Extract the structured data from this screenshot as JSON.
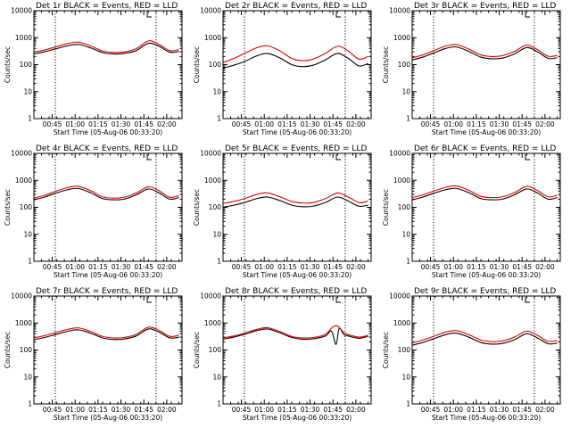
{
  "chart_data": [
    {
      "id": "p1",
      "type": "line",
      "title": "Det 1r BLACK = Events, RED = LLD",
      "xlabel": "Start Time (05-Aug-06 00:33:20)",
      "ylabel": "Counts/sec",
      "ylog": true,
      "ylim": [
        1,
        10000
      ],
      "yticks": [
        "1",
        "10",
        "100",
        "1000",
        "10000"
      ],
      "xticks": [
        "00:45",
        "01:00",
        "01:15",
        "01:30",
        "01:45",
        "02:00"
      ],
      "markers": [
        "00:47",
        "01:53"
      ],
      "xlim": [
        "00:33",
        "02:10"
      ],
      "series": [
        {
          "color": "#000000",
          "x": [
            "00:33",
            "00:40",
            "00:47",
            "00:55",
            "01:02",
            "01:10",
            "01:18",
            "01:25",
            "01:32",
            "01:40",
            "01:48",
            "01:55",
            "02:02",
            "02:08"
          ],
          "y": [
            250,
            300,
            380,
            500,
            560,
            420,
            280,
            250,
            260,
            330,
            620,
            480,
            290,
            310
          ]
        },
        {
          "color": "#e00000",
          "x": [
            "00:33",
            "00:40",
            "00:47",
            "00:55",
            "01:02",
            "01:10",
            "01:18",
            "01:25",
            "01:32",
            "01:40",
            "01:48",
            "01:55",
            "02:02",
            "02:08"
          ],
          "y": [
            290,
            350,
            450,
            600,
            680,
            500,
            320,
            285,
            295,
            390,
            760,
            560,
            330,
            360
          ]
        }
      ]
    },
    {
      "id": "p2",
      "type": "line",
      "title": "Det 2r BLACK = Events, RED = LLD",
      "xlabel": "Start Time (05-Aug-06 00:33:20)",
      "ylabel": "Counts/sec",
      "ylog": true,
      "ylim": [
        1,
        10000
      ],
      "yticks": [
        "1",
        "10",
        "100",
        "1000",
        "10000"
      ],
      "xticks": [
        "00:45",
        "01:00",
        "01:15",
        "01:30",
        "01:45",
        "02:00"
      ],
      "markers": [
        "00:47",
        "01:53"
      ],
      "xlim": [
        "00:33",
        "02:10"
      ],
      "series": [
        {
          "color": "#000000",
          "x": [
            "00:33",
            "00:40",
            "00:47",
            "00:55",
            "01:02",
            "01:10",
            "01:18",
            "01:25",
            "01:32",
            "01:40",
            "01:48",
            "01:55",
            "02:02",
            "02:08"
          ],
          "y": [
            75,
            95,
            130,
            210,
            260,
            180,
            100,
            85,
            95,
            150,
            260,
            170,
            90,
            110
          ]
        },
        {
          "color": "#e00000",
          "x": [
            "00:33",
            "00:40",
            "00:47",
            "00:55",
            "01:02",
            "01:10",
            "01:18",
            "01:25",
            "01:32",
            "01:40",
            "01:48",
            "01:55",
            "02:02",
            "02:08"
          ],
          "y": [
            120,
            170,
            260,
            420,
            500,
            330,
            170,
            140,
            160,
            260,
            480,
            320,
            160,
            200
          ]
        }
      ]
    },
    {
      "id": "p3",
      "type": "line",
      "title": "Det 3r BLACK = Events, RED = LLD",
      "xlabel": "Start Time (05-Aug-06 00:33:20)",
      "ylabel": "Counts/sec",
      "ylog": true,
      "ylim": [
        1,
        10000
      ],
      "yticks": [
        "1",
        "10",
        "100",
        "1000",
        "10000"
      ],
      "xticks": [
        "00:45",
        "01:00",
        "01:15",
        "01:30",
        "01:45",
        "02:00"
      ],
      "markers": [
        "00:47",
        "01:53"
      ],
      "xlim": [
        "00:33",
        "02:10"
      ],
      "series": [
        {
          "color": "#000000",
          "x": [
            "00:33",
            "00:40",
            "00:47",
            "00:55",
            "01:02",
            "01:10",
            "01:18",
            "01:25",
            "01:32",
            "01:40",
            "01:48",
            "01:55",
            "02:02",
            "02:08"
          ],
          "y": [
            150,
            190,
            270,
            400,
            450,
            310,
            190,
            165,
            175,
            250,
            430,
            300,
            170,
            180
          ]
        },
        {
          "color": "#e00000",
          "x": [
            "00:33",
            "00:40",
            "00:47",
            "00:55",
            "01:02",
            "01:10",
            "01:18",
            "01:25",
            "01:32",
            "01:40",
            "01:48",
            "01:55",
            "02:02",
            "02:08"
          ],
          "y": [
            180,
            230,
            330,
            490,
            550,
            380,
            230,
            200,
            215,
            310,
            530,
            360,
            205,
            220
          ]
        }
      ]
    },
    {
      "id": "p4",
      "type": "line",
      "title": "Det 4r BLACK = Events, RED = LLD",
      "xlabel": "Start Time (05-Aug-06 00:33:20)",
      "ylabel": "Counts/sec",
      "ylog": true,
      "ylim": [
        1,
        10000
      ],
      "yticks": [
        "1",
        "10",
        "100",
        "1000",
        "10000"
      ],
      "xticks": [
        "00:45",
        "01:00",
        "01:15",
        "01:30",
        "01:45",
        "02:00"
      ],
      "markers": [
        "00:47",
        "01:53"
      ],
      "xlim": [
        "00:33",
        "02:10"
      ],
      "series": [
        {
          "color": "#000000",
          "x": [
            "00:33",
            "00:40",
            "00:47",
            "00:55",
            "01:02",
            "01:10",
            "01:18",
            "01:25",
            "01:32",
            "01:40",
            "01:48",
            "01:55",
            "02:02",
            "02:08"
          ],
          "y": [
            190,
            240,
            330,
            450,
            500,
            350,
            210,
            190,
            200,
            290,
            480,
            340,
            200,
            230
          ]
        },
        {
          "color": "#e00000",
          "x": [
            "00:33",
            "00:40",
            "00:47",
            "00:55",
            "01:02",
            "01:10",
            "01:18",
            "01:25",
            "01:32",
            "01:40",
            "01:48",
            "01:55",
            "02:02",
            "02:08"
          ],
          "y": [
            220,
            280,
            390,
            540,
            600,
            420,
            245,
            220,
            235,
            340,
            580,
            410,
            235,
            270
          ]
        }
      ]
    },
    {
      "id": "p5",
      "type": "line",
      "title": "Det 5r BLACK = Events, RED = LLD",
      "xlabel": "Start Time (05-Aug-06 00:33:20)",
      "ylabel": "Counts/sec",
      "ylog": true,
      "ylim": [
        1,
        10000
      ],
      "yticks": [
        "1",
        "10",
        "100",
        "1000",
        "10000"
      ],
      "xticks": [
        "00:45",
        "01:00",
        "01:15",
        "01:30",
        "01:45",
        "02:00"
      ],
      "markers": [
        "00:47",
        "01:53"
      ],
      "xlim": [
        "00:33",
        "02:10"
      ],
      "series": [
        {
          "color": "#000000",
          "x": [
            "00:33",
            "00:40",
            "00:47",
            "00:55",
            "01:02",
            "01:10",
            "01:18",
            "01:25",
            "01:32",
            "01:40",
            "01:48",
            "01:55",
            "02:02",
            "02:08"
          ],
          "y": [
            100,
            120,
            150,
            210,
            240,
            180,
            120,
            105,
            110,
            150,
            240,
            170,
            110,
            120
          ]
        },
        {
          "color": "#e00000",
          "x": [
            "00:33",
            "00:40",
            "00:47",
            "00:55",
            "01:02",
            "01:10",
            "01:18",
            "01:25",
            "01:32",
            "01:40",
            "01:48",
            "01:55",
            "02:02",
            "02:08"
          ],
          "y": [
            140,
            165,
            210,
            300,
            340,
            250,
            165,
            145,
            150,
            210,
            340,
            240,
            150,
            170
          ]
        }
      ]
    },
    {
      "id": "p6",
      "type": "line",
      "title": "Det 6r BLACK = Events, RED = LLD",
      "xlabel": "Start Time (05-Aug-06 00:33:20)",
      "ylabel": "Counts/sec",
      "ylog": true,
      "ylim": [
        1,
        10000
      ],
      "yticks": [
        "1",
        "10",
        "100",
        "1000",
        "10000"
      ],
      "xticks": [
        "00:45",
        "01:00",
        "01:15",
        "01:30",
        "01:45",
        "02:00"
      ],
      "markers": [
        "00:47",
        "01:53"
      ],
      "xlim": [
        "00:33",
        "02:10"
      ],
      "series": [
        {
          "color": "#000000",
          "x": [
            "00:33",
            "00:40",
            "00:47",
            "00:55",
            "01:02",
            "01:10",
            "01:18",
            "01:25",
            "01:32",
            "01:40",
            "01:48",
            "01:55",
            "02:02",
            "02:08"
          ],
          "y": [
            190,
            240,
            330,
            450,
            500,
            350,
            210,
            190,
            200,
            290,
            480,
            340,
            200,
            230
          ]
        },
        {
          "color": "#e00000",
          "x": [
            "00:33",
            "00:40",
            "00:47",
            "00:55",
            "01:02",
            "01:10",
            "01:18",
            "01:25",
            "01:32",
            "01:40",
            "01:48",
            "01:55",
            "02:02",
            "02:08"
          ],
          "y": [
            230,
            290,
            400,
            550,
            620,
            430,
            255,
            230,
            245,
            350,
            600,
            420,
            245,
            280
          ]
        }
      ]
    },
    {
      "id": "p7",
      "type": "line",
      "title": "Det 7r BLACK = Events, RED = LLD",
      "xlabel": "Start Time (05-Aug-06 00:33:20)",
      "ylabel": "Counts/sec",
      "ylog": true,
      "ylim": [
        1,
        10000
      ],
      "yticks": [
        "1",
        "10",
        "100",
        "1000",
        "10000"
      ],
      "xticks": [
        "00:45",
        "01:00",
        "01:15",
        "01:30",
        "01:45",
        "02:00"
      ],
      "markers": [
        "00:47",
        "01:53"
      ],
      "xlim": [
        "00:33",
        "02:10"
      ],
      "series": [
        {
          "color": "#000000",
          "x": [
            "00:33",
            "00:40",
            "00:47",
            "00:55",
            "01:02",
            "01:10",
            "01:18",
            "01:25",
            "01:32",
            "01:40",
            "01:48",
            "01:55",
            "02:02",
            "02:08"
          ],
          "y": [
            240,
            290,
            370,
            490,
            560,
            420,
            280,
            245,
            255,
            330,
            600,
            460,
            280,
            300
          ]
        },
        {
          "color": "#e00000",
          "x": [
            "00:33",
            "00:40",
            "00:47",
            "00:55",
            "01:02",
            "01:10",
            "01:18",
            "01:25",
            "01:32",
            "01:40",
            "01:48",
            "01:55",
            "02:02",
            "02:08"
          ],
          "y": [
            280,
            340,
            440,
            580,
            660,
            490,
            320,
            280,
            290,
            380,
            700,
            530,
            320,
            350
          ]
        }
      ]
    },
    {
      "id": "p8",
      "type": "line",
      "title": "Det 8r BLACK = Events, RED = LLD",
      "xlabel": "Start Time (05-Aug-06 00:33:20)",
      "ylabel": "Counts/sec",
      "ylog": true,
      "ylim": [
        1,
        10000
      ],
      "yticks": [
        "1",
        "10",
        "100",
        "1000",
        "10000"
      ],
      "xticks": [
        "00:45",
        "01:00",
        "01:15",
        "01:30",
        "01:45",
        "02:00"
      ],
      "markers": [
        "00:47",
        "01:53"
      ],
      "xlim": [
        "00:33",
        "02:10"
      ],
      "series": [
        {
          "color": "#000000",
          "x": [
            "00:33",
            "00:40",
            "00:47",
            "00:55",
            "01:02",
            "01:10",
            "01:18",
            "01:25",
            "01:32",
            "01:40",
            "01:44",
            "01:47",
            "01:49",
            "01:52",
            "01:55",
            "02:02",
            "02:08"
          ],
          "y": [
            250,
            300,
            380,
            520,
            600,
            440,
            290,
            250,
            260,
            330,
            500,
            160,
            620,
            380,
            330,
            270,
            320
          ]
        },
        {
          "color": "#e00000",
          "x": [
            "00:33",
            "00:40",
            "00:47",
            "00:55",
            "01:02",
            "01:10",
            "01:18",
            "01:25",
            "01:32",
            "01:40",
            "01:44",
            "01:47",
            "01:49",
            "01:52",
            "01:55",
            "02:02",
            "02:08"
          ],
          "y": [
            280,
            330,
            420,
            580,
            670,
            490,
            320,
            280,
            290,
            380,
            650,
            800,
            700,
            450,
            370,
            300,
            350
          ]
        }
      ]
    },
    {
      "id": "p9",
      "type": "line",
      "title": "Det 9r BLACK = Events, RED = LLD",
      "xlabel": "Start Time (05-Aug-06 00:33:20)",
      "ylabel": "Counts/sec",
      "ylog": true,
      "ylim": [
        1,
        10000
      ],
      "yticks": [
        "1",
        "10",
        "100",
        "1000",
        "10000"
      ],
      "xticks": [
        "00:45",
        "01:00",
        "01:15",
        "01:30",
        "01:45",
        "02:00"
      ],
      "markers": [
        "00:47",
        "01:53"
      ],
      "xlim": [
        "00:33",
        "02:10"
      ],
      "series": [
        {
          "color": "#000000",
          "x": [
            "00:33",
            "00:40",
            "00:47",
            "00:55",
            "01:02",
            "01:10",
            "01:18",
            "01:25",
            "01:32",
            "01:40",
            "01:48",
            "01:55",
            "02:02",
            "02:08"
          ],
          "y": [
            150,
            190,
            260,
            370,
            420,
            300,
            190,
            165,
            175,
            240,
            400,
            280,
            170,
            180
          ]
        },
        {
          "color": "#e00000",
          "x": [
            "00:33",
            "00:40",
            "00:47",
            "00:55",
            "01:02",
            "01:10",
            "01:18",
            "01:25",
            "01:32",
            "01:40",
            "01:48",
            "01:55",
            "02:02",
            "02:08"
          ],
          "y": [
            185,
            235,
            320,
            460,
            520,
            370,
            235,
            205,
            215,
            300,
            500,
            350,
            210,
            225
          ]
        }
      ]
    }
  ]
}
